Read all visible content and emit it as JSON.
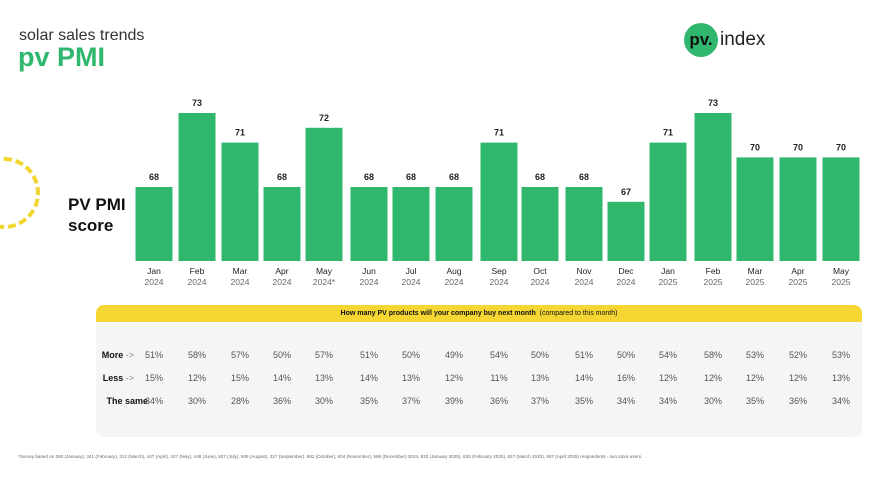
{
  "header": {
    "subtitle": "solar sales trends",
    "title": "pv PMI"
  },
  "logo": {
    "mark": "pv.",
    "text": "index"
  },
  "colors": {
    "bar": "#2fb86d",
    "accent": "#f5d632"
  },
  "chart_data": {
    "type": "bar",
    "ylabel": "PV PMI score",
    "ylim": [
      63,
      74
    ],
    "categories": [
      [
        "Jan",
        "2024"
      ],
      [
        "Feb",
        "2024"
      ],
      [
        "Mar",
        "2024"
      ],
      [
        "Apr",
        "2024"
      ],
      [
        "May",
        "2024*"
      ],
      [
        "Jun",
        "2024"
      ],
      [
        "Jul",
        "2024"
      ],
      [
        "Aug",
        "2024"
      ],
      [
        "Sep",
        "2024"
      ],
      [
        "Oct",
        "2024"
      ],
      [
        "Nov",
        "2024"
      ],
      [
        "Dec",
        "2024"
      ],
      [
        "Jan",
        "2025"
      ],
      [
        "Feb",
        "2025"
      ],
      [
        "Mar",
        "2025"
      ],
      [
        "Apr",
        "2025"
      ],
      [
        "May",
        "2025"
      ]
    ],
    "values": [
      68,
      73,
      71,
      68,
      72,
      68,
      68,
      68,
      71,
      68,
      68,
      67,
      71,
      73,
      70,
      70,
      70
    ]
  },
  "table": {
    "question": "How many PV products will your company buy next month",
    "question_note": "(compared to this month)",
    "rows": [
      {
        "label": "More",
        "arrow": "->",
        "values": [
          "51%",
          "58%",
          "57%",
          "50%",
          "57%",
          "51%",
          "50%",
          "49%",
          "54%",
          "50%",
          "51%",
          "50%",
          "54%",
          "58%",
          "53%",
          "52%",
          "53%"
        ]
      },
      {
        "label": "Less",
        "arrow": "->",
        "values": [
          "15%",
          "12%",
          "15%",
          "14%",
          "13%",
          "14%",
          "13%",
          "12%",
          "11%",
          "13%",
          "14%",
          "16%",
          "12%",
          "12%",
          "12%",
          "12%",
          "13%"
        ]
      },
      {
        "label": "The same",
        "arrow": "",
        "values": [
          "34%",
          "30%",
          "28%",
          "36%",
          "30%",
          "35%",
          "37%",
          "39%",
          "36%",
          "37%",
          "35%",
          "34%",
          "34%",
          "30%",
          "35%",
          "36%",
          "34%"
        ]
      }
    ]
  },
  "footnote": "*Survey based on 260 (January), 341 (February), 312 (March), 447 (April), 427 (May), 448 (June), 507 (July), 508 (August), 327 (September), 882 (October), 834 (November), 588 (December) 2024, 932 (January 2025), 630 (February 2025), 627 (March 2025), 957 (April 2025) respondents - sun.store users."
}
